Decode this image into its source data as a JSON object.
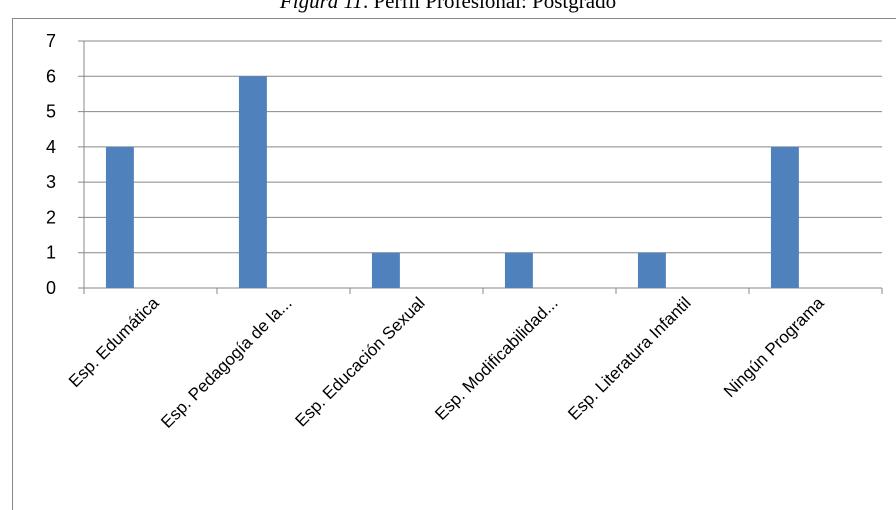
{
  "chart_data": {
    "type": "bar",
    "title": {
      "label": "Figura 11",
      "text": ". Perfil Profesional: Postgrado"
    },
    "categories": [
      "Esp. Edumática",
      "Esp. Pedagogía de la...",
      "Esp. Educación Sexual",
      "Esp. Modificabilidad...",
      "Esp. Literatura Infantil",
      "Ningún Programa"
    ],
    "values": [
      4,
      6,
      1,
      1,
      1,
      4
    ],
    "color": "#4f81bd",
    "ylim": [
      0,
      7
    ],
    "yticks": [
      0,
      1,
      2,
      3,
      4,
      5,
      6,
      7
    ],
    "grid": true
  }
}
